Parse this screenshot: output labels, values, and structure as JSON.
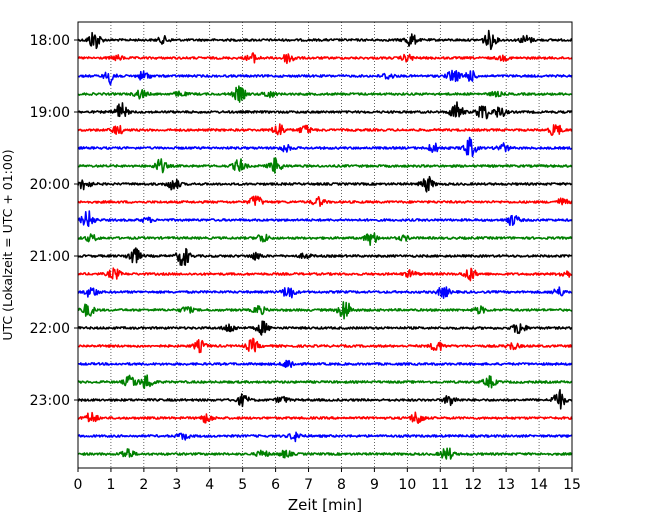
{
  "chart_data": {
    "type": "line",
    "title": "",
    "xlabel": "Zeit  [min]",
    "ylabel": "UTC (Lokalzeit = UTC + 01:00)",
    "xlim": [
      0,
      15
    ],
    "x_ticks": [
      0,
      1,
      2,
      3,
      4,
      5,
      6,
      7,
      8,
      9,
      10,
      11,
      12,
      13,
      14,
      15
    ],
    "y_tick_labels": [
      "18:00",
      "19:00",
      "20:00",
      "21:00",
      "22:00",
      "23:00"
    ],
    "grid": "vertical dotted",
    "color_cycle": [
      "#000000",
      "#ff0000",
      "#0000ff",
      "#008000"
    ],
    "traces": [
      {
        "start": "18:00",
        "color": "#000000",
        "bursts": [
          [
            0.5,
            0.9
          ],
          [
            2.6,
            0.3
          ],
          [
            10.1,
            0.6
          ],
          [
            12.5,
            0.8
          ],
          [
            13.6,
            0.4
          ]
        ]
      },
      {
        "start": "18:15",
        "color": "#ff0000",
        "bursts": [
          [
            1.2,
            0.2
          ],
          [
            5.3,
            0.4
          ],
          [
            6.4,
            0.5
          ],
          [
            10.0,
            0.3
          ],
          [
            12.9,
            0.2
          ]
        ]
      },
      {
        "start": "18:30",
        "color": "#0000ff",
        "bursts": [
          [
            1.0,
            0.7
          ],
          [
            2.0,
            0.4
          ],
          [
            9.4,
            0.3
          ],
          [
            11.4,
            0.6
          ],
          [
            11.9,
            0.5
          ]
        ]
      },
      {
        "start": "18:45",
        "color": "#008000",
        "bursts": [
          [
            1.9,
            0.4
          ],
          [
            3.1,
            0.2
          ],
          [
            4.9,
            0.7
          ],
          [
            5.8,
            0.3
          ],
          [
            12.7,
            0.2
          ]
        ]
      },
      {
        "start": "19:00",
        "color": "#000000",
        "bursts": [
          [
            1.3,
            0.8
          ],
          [
            11.5,
            0.9
          ],
          [
            12.3,
            0.8
          ],
          [
            12.8,
            0.5
          ]
        ]
      },
      {
        "start": "19:15",
        "color": "#ff0000",
        "bursts": [
          [
            1.2,
            0.4
          ],
          [
            6.1,
            0.6
          ],
          [
            6.9,
            0.4
          ],
          [
            14.5,
            0.6
          ]
        ]
      },
      {
        "start": "19:30",
        "color": "#0000ff",
        "bursts": [
          [
            6.3,
            0.3
          ],
          [
            10.8,
            0.4
          ],
          [
            11.9,
            0.9
          ],
          [
            12.9,
            0.4
          ]
        ]
      },
      {
        "start": "19:45",
        "color": "#008000",
        "bursts": [
          [
            2.5,
            0.6
          ],
          [
            4.9,
            0.6
          ],
          [
            6.0,
            0.7
          ]
        ]
      },
      {
        "start": "20:00",
        "color": "#000000",
        "bursts": [
          [
            0.2,
            0.5
          ],
          [
            2.9,
            0.6
          ],
          [
            10.6,
            0.7
          ]
        ]
      },
      {
        "start": "20:15",
        "color": "#ff0000",
        "bursts": [
          [
            5.4,
            0.6
          ],
          [
            7.3,
            0.4
          ],
          [
            14.7,
            0.3
          ]
        ]
      },
      {
        "start": "20:30",
        "color": "#0000ff",
        "bursts": [
          [
            0.3,
            0.8
          ],
          [
            2.1,
            0.2
          ],
          [
            13.2,
            0.5
          ]
        ]
      },
      {
        "start": "20:45",
        "color": "#008000",
        "bursts": [
          [
            0.4,
            0.3
          ],
          [
            5.6,
            0.4
          ],
          [
            8.9,
            0.6
          ],
          [
            9.9,
            0.2
          ]
        ]
      },
      {
        "start": "21:00",
        "color": "#000000",
        "bursts": [
          [
            1.7,
            0.8
          ],
          [
            3.2,
            1.0
          ],
          [
            5.4,
            0.3
          ],
          [
            6.9,
            0.2
          ]
        ]
      },
      {
        "start": "21:15",
        "color": "#ff0000",
        "bursts": [
          [
            1.1,
            0.5
          ],
          [
            10.1,
            0.3
          ],
          [
            11.9,
            0.6
          ],
          [
            14.8,
            0.3
          ]
        ]
      },
      {
        "start": "21:30",
        "color": "#0000ff",
        "bursts": [
          [
            0.4,
            0.5
          ],
          [
            6.4,
            0.6
          ],
          [
            11.1,
            0.5
          ],
          [
            14.6,
            0.4
          ]
        ]
      },
      {
        "start": "21:45",
        "color": "#008000",
        "bursts": [
          [
            0.3,
            0.6
          ],
          [
            3.3,
            0.3
          ],
          [
            5.5,
            0.4
          ],
          [
            8.1,
            1.0
          ],
          [
            12.2,
            0.3
          ]
        ]
      },
      {
        "start": "22:00",
        "color": "#000000",
        "bursts": [
          [
            4.6,
            0.4
          ],
          [
            5.6,
            0.6
          ],
          [
            13.4,
            0.6
          ]
        ]
      },
      {
        "start": "22:15",
        "color": "#ff0000",
        "bursts": [
          [
            3.7,
            0.5
          ],
          [
            5.3,
            0.6
          ],
          [
            10.9,
            0.5
          ],
          [
            13.2,
            0.3
          ]
        ]
      },
      {
        "start": "22:30",
        "color": "#0000ff",
        "bursts": [
          [
            6.4,
            0.4
          ]
        ]
      },
      {
        "start": "22:45",
        "color": "#008000",
        "bursts": [
          [
            1.6,
            0.6
          ],
          [
            2.1,
            0.7
          ],
          [
            12.5,
            0.5
          ]
        ]
      },
      {
        "start": "23:00",
        "color": "#000000",
        "bursts": [
          [
            5.0,
            0.5
          ],
          [
            6.2,
            0.3
          ],
          [
            11.3,
            0.5
          ],
          [
            14.6,
            0.9
          ]
        ]
      },
      {
        "start": "23:15",
        "color": "#ff0000",
        "bursts": [
          [
            0.4,
            0.5
          ],
          [
            3.9,
            0.4
          ],
          [
            10.3,
            0.6
          ]
        ]
      },
      {
        "start": "23:30",
        "color": "#0000ff",
        "bursts": [
          [
            3.2,
            0.3
          ],
          [
            6.6,
            0.4
          ]
        ]
      },
      {
        "start": "23:45",
        "color": "#008000",
        "bursts": [
          [
            1.5,
            0.5
          ],
          [
            5.6,
            0.3
          ],
          [
            6.3,
            0.3
          ],
          [
            11.2,
            0.6
          ]
        ]
      }
    ]
  }
}
